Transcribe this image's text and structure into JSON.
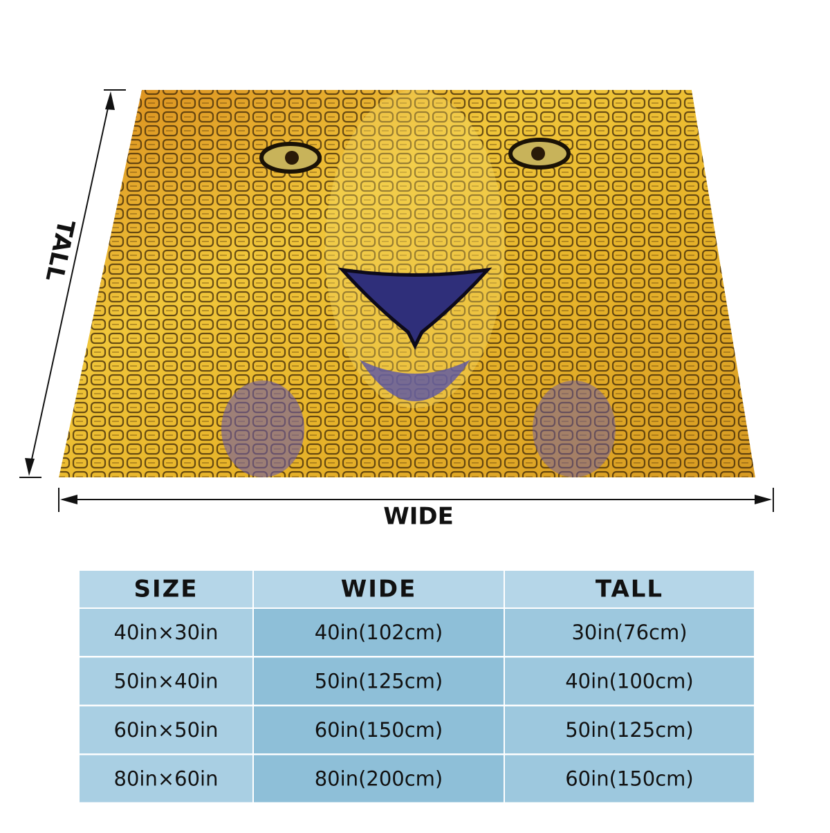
{
  "product": {
    "tall_label": "TALL",
    "wide_label": "WIDE",
    "table": {
      "header": [
        "SIZE",
        "WIDE",
        "TALL"
      ],
      "rows": [
        [
          "40in×30in",
          "40in(102cm)",
          "30in(76cm)"
        ],
        [
          "50in×40in",
          "50in(125cm)",
          "40in(100cm)"
        ],
        [
          "60in×50in",
          "60in(150cm)",
          "50in(125cm)"
        ],
        [
          "80in×60in",
          "80in(200cm)",
          "60in(150cm)"
        ]
      ]
    }
  }
}
